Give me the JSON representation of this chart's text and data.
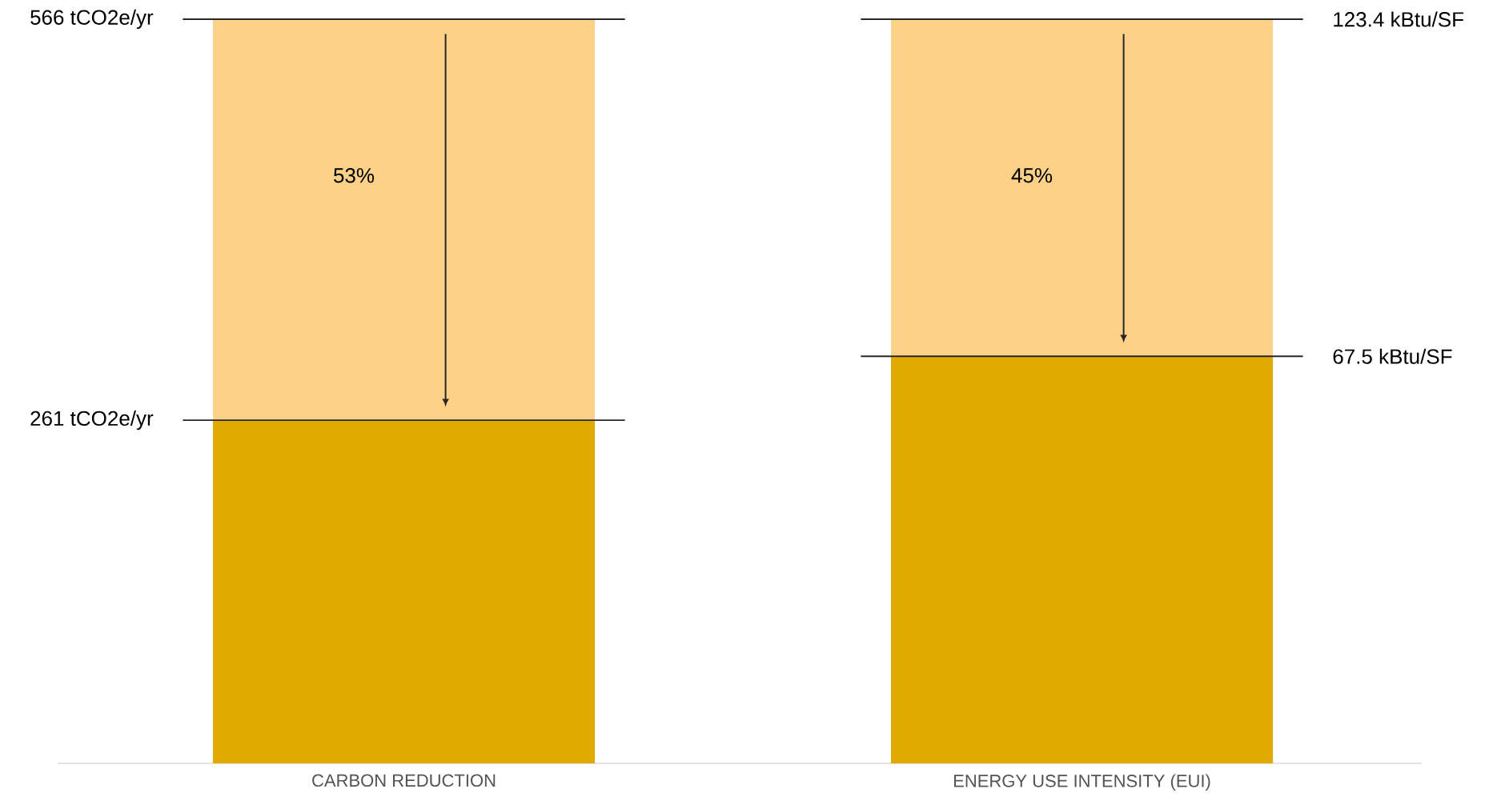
{
  "chart_data": [
    {
      "type": "bar",
      "stacked": true,
      "categories": [
        "CARBON REDUCTION"
      ],
      "ylim": [
        0,
        566
      ],
      "series": [
        {
          "color": "#e1aa00",
          "values": [
            261
          ]
        },
        {
          "color": "#fdd187",
          "values": [
            305
          ]
        }
      ],
      "ref_lines": [
        {
          "axis": "y",
          "value": 566,
          "label": "566 tCO2e/yr"
        },
        {
          "axis": "y",
          "value": 261,
          "label": "261 tCO2e/yr"
        }
      ],
      "annotations": [
        "53%"
      ]
    },
    {
      "type": "bar",
      "stacked": true,
      "categories": [
        "ENERGY USE INTENSITY (EUI)"
      ],
      "ylim": [
        0,
        123.4
      ],
      "series": [
        {
          "color": "#e1aa00",
          "values": [
            67.5
          ]
        },
        {
          "color": "#fdd187",
          "values": [
            55.9
          ]
        }
      ],
      "ref_lines": [
        {
          "axis": "y",
          "value": 123.4,
          "label": "123.4 kBtu/SF"
        },
        {
          "axis": "y",
          "value": 67.5,
          "label": "67.5 kBtu/SF"
        }
      ],
      "annotations": [
        "45%"
      ]
    }
  ]
}
